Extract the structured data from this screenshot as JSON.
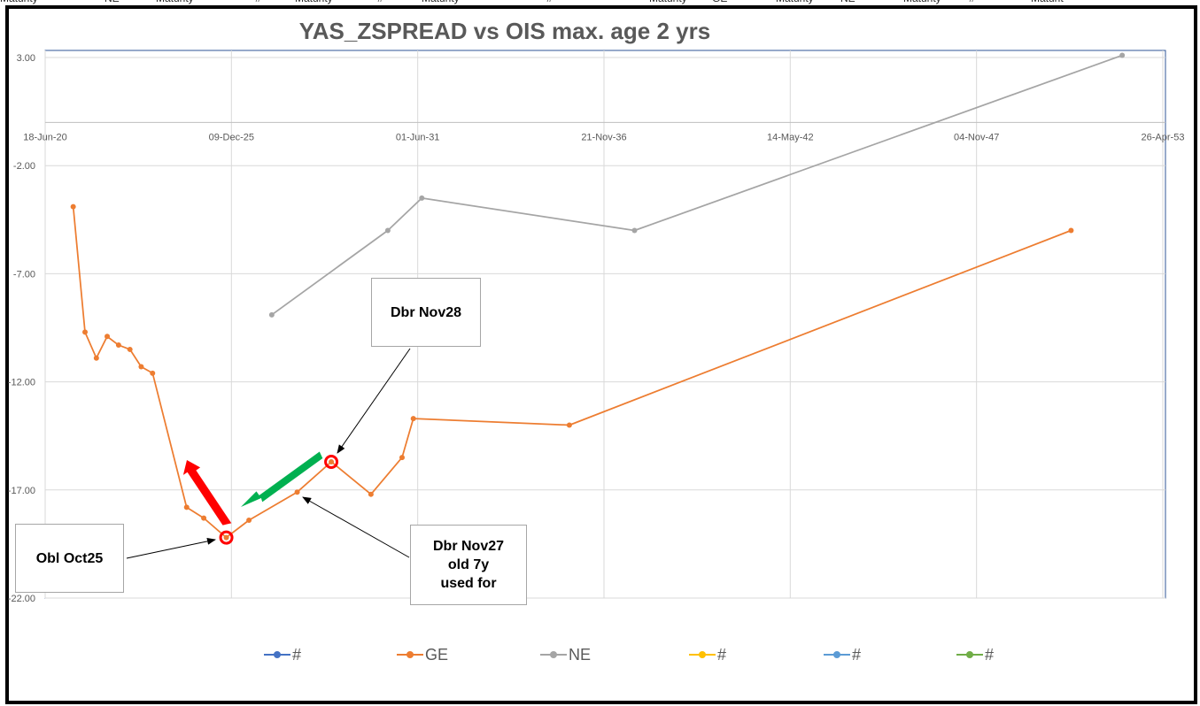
{
  "sheet_header": [
    "Maturity",
    "NE",
    "Maturity",
    "#",
    "Maturity",
    "#",
    "Maturity",
    "#",
    "Maturity",
    "GE",
    "Maturity",
    "NE",
    "Maturity",
    "#",
    "Maturit"
  ],
  "chart_data": {
    "type": "line",
    "title": "YAS_ZSPREAD vs OIS max. age 2 yrs",
    "x_axis": {
      "type": "date",
      "min": "2020-06-18",
      "max": "2053-04-26",
      "ticks": [
        "2020-06-18",
        "2025-12-09",
        "2031-06-01",
        "2036-11-21",
        "2042-05-14",
        "2047-11-04",
        "2053-04-26"
      ],
      "tick_labels": [
        "18-Jun-20",
        "09-Dec-25",
        "01-Jun-31",
        "21-Nov-36",
        "14-May-42",
        "04-Nov-47",
        "26-Apr-53"
      ],
      "crosses_y_at": 0
    },
    "y_axis": {
      "min": -22,
      "max": 3,
      "ticks": [
        3,
        -2,
        -7,
        -12,
        -17,
        -22
      ],
      "tick_labels": [
        "3.00",
        "-2.00",
        "-7.00",
        "-12.00",
        "-17.00",
        "-22.00"
      ]
    },
    "grid": true,
    "legend": {
      "position": "bottom",
      "entries": [
        {
          "name": "#",
          "color": "#4472c4"
        },
        {
          "name": "GE",
          "color": "#ed7d31"
        },
        {
          "name": "NE",
          "color": "#a5a5a5"
        },
        {
          "name": "#",
          "color": "#ffc000"
        },
        {
          "name": "#",
          "color": "#5b9bd5"
        },
        {
          "name": "#",
          "color": "#70ad47"
        }
      ]
    },
    "series": [
      {
        "name": "GE",
        "color": "#ed7d31",
        "points": [
          {
            "x": "2021-04-15",
            "y": -3.9
          },
          {
            "x": "2021-08-20",
            "y": -9.7
          },
          {
            "x": "2021-12-20",
            "y": -10.9
          },
          {
            "x": "2022-04-15",
            "y": -9.9
          },
          {
            "x": "2022-08-15",
            "y": -10.3
          },
          {
            "x": "2022-12-15",
            "y": -10.5
          },
          {
            "x": "2023-04-15",
            "y": -11.3
          },
          {
            "x": "2023-08-15",
            "y": -11.6
          },
          {
            "x": "2024-08-15",
            "y": -17.8
          },
          {
            "x": "2025-02-15",
            "y": -18.3
          },
          {
            "x": "2025-10-15",
            "y": -19.2
          },
          {
            "x": "2026-06-15",
            "y": -18.4
          },
          {
            "x": "2027-11-15",
            "y": -17.1
          },
          {
            "x": "2028-11-15",
            "y": -15.7
          },
          {
            "x": "2030-01-15",
            "y": -17.2
          },
          {
            "x": "2030-12-15",
            "y": -15.5
          },
          {
            "x": "2031-04-15",
            "y": -13.7
          },
          {
            "x": "2035-11-15",
            "y": -14.0
          },
          {
            "x": "2050-08-15",
            "y": -5.0
          }
        ]
      },
      {
        "name": "NE",
        "color": "#a5a5a5",
        "points": [
          {
            "x": "2027-02-15",
            "y": -8.9
          },
          {
            "x": "2030-07-15",
            "y": -5.0
          },
          {
            "x": "2031-07-15",
            "y": -3.5
          },
          {
            "x": "2037-10-15",
            "y": -5.0
          },
          {
            "x": "2052-02-15",
            "y": 3.1
          }
        ]
      }
    ],
    "highlighted_points": [
      {
        "series": "GE",
        "x": "2025-10-15",
        "y": -19.2
      },
      {
        "series": "GE",
        "x": "2028-11-15",
        "y": -15.7
      }
    ],
    "annotations": {
      "callout_dbr_nov28": "Dbr Nov28",
      "callout_obl_oct25": "Obl Oct25",
      "callout_dbr_nov27": [
        "Dbr Nov27",
        "old 7y",
        "used for"
      ]
    }
  }
}
